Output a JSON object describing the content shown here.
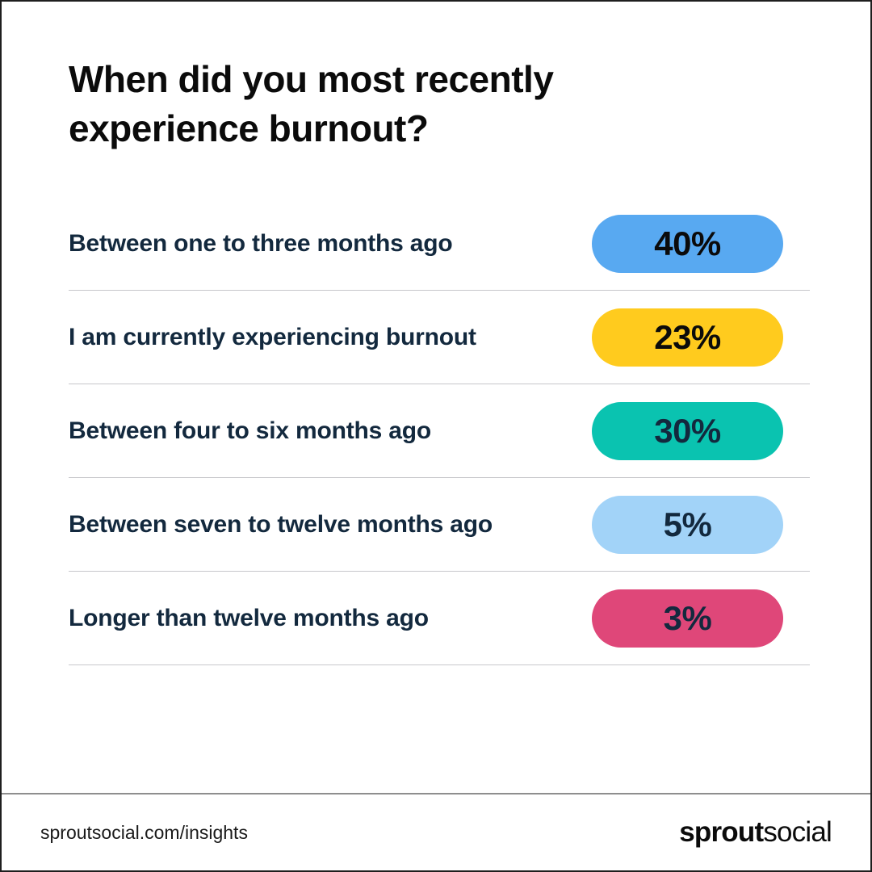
{
  "title": "When did you most recently experience burnout?",
  "rows": [
    {
      "label": "Between one to three months ago",
      "value": "40%",
      "pill_color": "#58a9f1",
      "value_color": "#0b0b0b"
    },
    {
      "label": "I am currently experiencing burnout",
      "value": "23%",
      "pill_color": "#ffcb1e",
      "value_color": "#0b0b0b"
    },
    {
      "label": "Between four to six months ago",
      "value": "30%",
      "pill_color": "#0ac3b0",
      "value_color": "#13293e"
    },
    {
      "label": "Between seven to twelve months ago",
      "value": "5%",
      "pill_color": "#a2d3f8",
      "value_color": "#13293e"
    },
    {
      "label": "Longer than twelve months ago",
      "value": "3%",
      "pill_color": "#df4779",
      "value_color": "#13293e"
    }
  ],
  "footer": {
    "url": "sproutsocial.com/insights",
    "logo_bold": "sprout",
    "logo_light": "social"
  },
  "colors": {
    "title": "#0b0b0b",
    "label": "#13293e",
    "row_divider": "#c7c7cb",
    "footer_divider": "#8e8e8e",
    "page_border": "#1e1e1e",
    "background": "#ffffff"
  },
  "chart_data": {
    "type": "bar",
    "orientation": "horizontal",
    "title": "When did you most recently experience burnout?",
    "categories": [
      "Between one to three months ago",
      "I am currently experiencing burnout",
      "Between four to six months ago",
      "Between seven to twelve months ago",
      "Longer than twelve months ago"
    ],
    "values": [
      40,
      23,
      30,
      5,
      3
    ],
    "unit": "%",
    "bar_colors": [
      "#58a9f1",
      "#ffcb1e",
      "#0ac3b0",
      "#a2d3f8",
      "#df4779"
    ],
    "xlabel": "",
    "ylabel": "",
    "legend": false,
    "grid": false,
    "value_labels_on_bars": true,
    "source": "sproutsocial.com/insights"
  }
}
